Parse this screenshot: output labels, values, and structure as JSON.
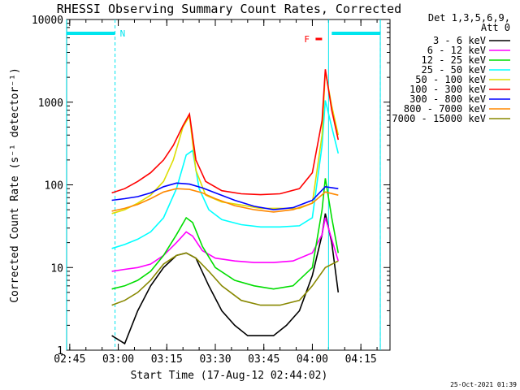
{
  "chart_data": {
    "type": "line",
    "title": "RHESSI Observing Summary Count Rates, Corrected",
    "xlabel": "Start Time (17-Aug-12 02:44:02)",
    "ylabel": "Corrected Count Rate (s⁻¹ detector⁻¹)",
    "y_scale": "log",
    "xlim": [
      "02:44:02",
      "04:24:00"
    ],
    "ylim": [
      1,
      10000
    ],
    "x_ticks": [
      "02:45",
      "03:00",
      "03:15",
      "03:30",
      "03:45",
      "04:00",
      "04:15"
    ],
    "y_ticks": [
      "1",
      "10",
      "100",
      "1000",
      "10000"
    ],
    "legend_header": [
      "Det 1,3,5,6,9,",
      "Att 0"
    ],
    "legend_position": "right",
    "footer_date": "25-Oct-2021 01:39",
    "flags": {
      "N": "N",
      "F": "F"
    },
    "annotations": {
      "night_bar": [
        [
          "02:44",
          "02:59"
        ],
        [
          "04:06",
          "04:21"
        ]
      ],
      "vertical_lines": [
        "02:44",
        "04:05",
        "04:21"
      ],
      "dashed_lines": [
        "02:59",
        "04:21"
      ],
      "flare_marker": [
        "04:01",
        "04:03"
      ]
    },
    "series": [
      {
        "name": "3 - 6 keV",
        "color": "#000000",
        "x": [
          "02:58",
          "03:02",
          "03:06",
          "03:10",
          "03:14",
          "03:18",
          "03:21",
          "03:24",
          "03:28",
          "03:32",
          "03:36",
          "03:40",
          "03:44",
          "03:48",
          "03:52",
          "03:56",
          "04:00",
          "04:03",
          "04:04",
          "04:06",
          "04:08"
        ],
        "y": [
          1.5,
          1.2,
          3,
          6,
          10,
          14,
          15,
          13,
          6,
          3,
          2,
          1.5,
          1.5,
          1.5,
          2,
          3,
          8,
          25,
          45,
          20,
          5
        ]
      },
      {
        "name": "6 - 12 keV",
        "color": "#ff00ff",
        "x": [
          "02:58",
          "03:02",
          "03:06",
          "03:10",
          "03:14",
          "03:18",
          "03:21",
          "03:23",
          "03:26",
          "03:30",
          "03:36",
          "03:42",
          "03:48",
          "03:54",
          "04:00",
          "04:03",
          "04:04",
          "04:06",
          "04:08"
        ],
        "y": [
          9,
          9.5,
          10,
          11,
          14,
          20,
          27,
          24,
          16,
          13,
          12,
          11.5,
          11.5,
          12,
          15,
          25,
          40,
          22,
          12
        ]
      },
      {
        "name": "12 - 25 keV",
        "color": "#00dd00",
        "x": [
          "02:58",
          "03:02",
          "03:06",
          "03:10",
          "03:14",
          "03:18",
          "03:21",
          "03:23",
          "03:26",
          "03:30",
          "03:36",
          "03:42",
          "03:48",
          "03:54",
          "04:00",
          "04:03",
          "04:04",
          "04:06",
          "04:08"
        ],
        "y": [
          5.5,
          6,
          7,
          9,
          14,
          25,
          40,
          35,
          18,
          10,
          7,
          6,
          5.5,
          6,
          10,
          50,
          120,
          40,
          15
        ]
      },
      {
        "name": "25 - 50 keV",
        "color": "#00ffff",
        "x": [
          "02:58",
          "03:02",
          "03:06",
          "03:10",
          "03:14",
          "03:18",
          "03:21",
          "03:23",
          "03:25",
          "03:28",
          "03:32",
          "03:38",
          "03:44",
          "03:50",
          "03:56",
          "04:00",
          "04:03",
          "04:04",
          "04:06",
          "04:08"
        ],
        "y": [
          17,
          19,
          22,
          27,
          40,
          90,
          230,
          260,
          90,
          50,
          38,
          33,
          31,
          31,
          32,
          40,
          300,
          1050,
          500,
          240
        ]
      },
      {
        "name": "50 - 100 keV",
        "color": "#dddd00",
        "x": [
          "02:58",
          "03:02",
          "03:06",
          "03:10",
          "03:14",
          "03:17",
          "03:20",
          "03:22",
          "03:24",
          "03:27",
          "03:32",
          "03:38",
          "03:44",
          "03:50",
          "03:56",
          "04:00",
          "04:03",
          "04:04",
          "04:06",
          "04:08"
        ],
        "y": [
          45,
          50,
          60,
          75,
          110,
          200,
          500,
          680,
          150,
          75,
          62,
          57,
          52,
          52,
          52,
          60,
          400,
          2400,
          900,
          400
        ]
      },
      {
        "name": "100 - 300 keV",
        "color": "#ff0000",
        "x": [
          "02:58",
          "03:02",
          "03:06",
          "03:10",
          "03:14",
          "03:17",
          "03:20",
          "03:22",
          "03:24",
          "03:27",
          "03:32",
          "03:38",
          "03:44",
          "03:50",
          "03:56",
          "04:00",
          "04:03",
          "04:04",
          "04:06",
          "04:08"
        ],
        "y": [
          80,
          90,
          110,
          140,
          200,
          300,
          520,
          720,
          200,
          110,
          85,
          78,
          76,
          78,
          90,
          140,
          600,
          2500,
          800,
          350
        ]
      },
      {
        "name": "300 - 800 keV",
        "color": "#0000ff",
        "x": [
          "02:58",
          "03:02",
          "03:06",
          "03:10",
          "03:14",
          "03:18",
          "03:22",
          "03:26",
          "03:30",
          "03:36",
          "03:42",
          "03:48",
          "03:54",
          "04:00",
          "04:04",
          "04:08"
        ],
        "y": [
          65,
          68,
          72,
          80,
          95,
          105,
          102,
          92,
          80,
          65,
          55,
          50,
          53,
          65,
          95,
          90
        ]
      },
      {
        "name": "800 - 7000 keV",
        "color": "#ff8800",
        "x": [
          "02:58",
          "03:02",
          "03:06",
          "03:10",
          "03:14",
          "03:18",
          "03:22",
          "03:26",
          "03:30",
          "03:36",
          "03:42",
          "03:48",
          "03:54",
          "04:00",
          "04:04",
          "04:08"
        ],
        "y": [
          48,
          52,
          58,
          68,
          82,
          90,
          88,
          80,
          68,
          56,
          50,
          47,
          50,
          60,
          82,
          75
        ]
      },
      {
        "name": "7000 - 15000 keV",
        "color": "#888800",
        "x": [
          "02:58",
          "03:02",
          "03:06",
          "03:10",
          "03:14",
          "03:18",
          "03:21",
          "03:24",
          "03:28",
          "03:32",
          "03:38",
          "03:44",
          "03:50",
          "03:56",
          "04:00",
          "04:04",
          "04:08"
        ],
        "y": [
          3.5,
          4,
          5,
          7,
          11,
          14,
          15,
          13,
          9,
          6,
          4,
          3.5,
          3.5,
          4,
          6,
          10,
          12
        ]
      }
    ]
  }
}
